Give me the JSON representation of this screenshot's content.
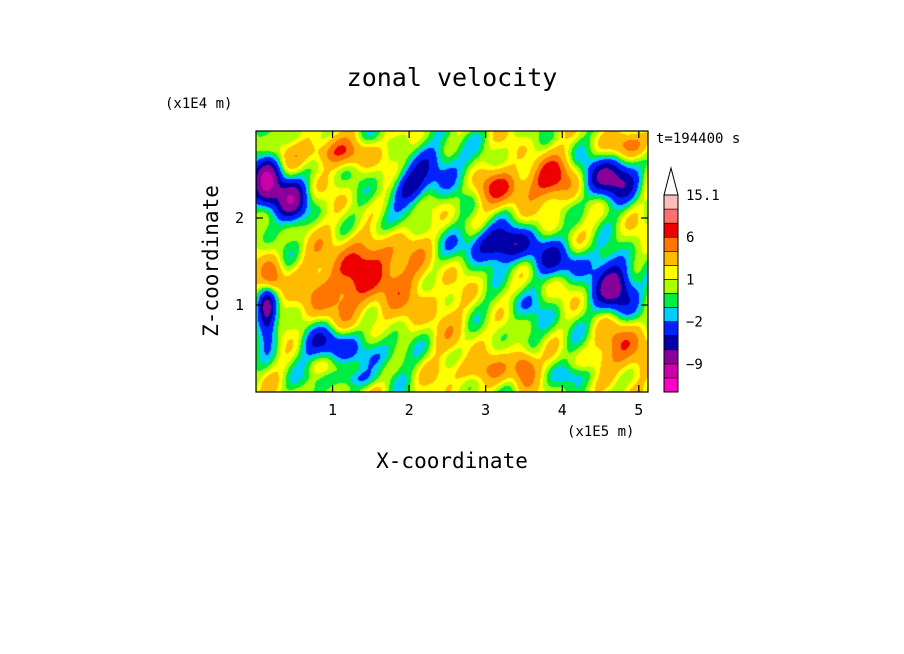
{
  "chart_data": {
    "type": "heatmap",
    "title": "zonal velocity",
    "xlabel": "X-coordinate",
    "ylabel": "Z-coordinate",
    "x_unit": "(x1E5 m)",
    "y_unit": "(x1E4 m)",
    "time_label": "t=194400 s",
    "xlim": [
      0.0,
      5.12
    ],
    "ylim": [
      0.0,
      3.0
    ],
    "x_ticks": [
      {
        "value": 1,
        "label": "1"
      },
      {
        "value": 2,
        "label": "2"
      },
      {
        "value": 3,
        "label": "3"
      },
      {
        "value": 4,
        "label": "4"
      },
      {
        "value": 5,
        "label": "5"
      }
    ],
    "y_ticks": [
      {
        "value": 1,
        "label": "1"
      },
      {
        "value": 2,
        "label": "2"
      }
    ],
    "colorbar": {
      "levels": [
        -15.1,
        -12,
        -9,
        -6,
        -4,
        -2,
        -1,
        0,
        1,
        2,
        4,
        6,
        9,
        12,
        15.1
      ],
      "colors": [
        "#ff00cc",
        "#cc00aa",
        "#880099",
        "#0000aa",
        "#0022ff",
        "#00ccff",
        "#00ee44",
        "#aaff00",
        "#ffff00",
        "#ffbb00",
        "#ff7700",
        "#ee0000",
        "#ff6f6f",
        "#ffbbbb"
      ],
      "extend_max": true,
      "extend_color": "#ffffff",
      "labels": [
        {
          "value": 15.1,
          "label": "15.1"
        },
        {
          "value": 6,
          "label": "6"
        },
        {
          "value": 1,
          "label": "1"
        },
        {
          "value": -2,
          "label": "−2"
        },
        {
          "value": -9,
          "label": "−9"
        }
      ]
    },
    "field_features": [
      {
        "x": 0.15,
        "z": 2.4,
        "sx": 0.18,
        "sz": 0.3,
        "amp": -10
      },
      {
        "x": 0.45,
        "z": 2.2,
        "sx": 0.2,
        "sz": 0.25,
        "amp": -8
      },
      {
        "x": 0.15,
        "z": 0.9,
        "sx": 0.12,
        "sz": 0.35,
        "amp": -7
      },
      {
        "x": 0.2,
        "z": 1.3,
        "sx": 0.15,
        "sz": 0.2,
        "amp": 6
      },
      {
        "x": 1.0,
        "z": 2.75,
        "sx": 0.6,
        "sz": 0.15,
        "amp": 4
      },
      {
        "x": 1.5,
        "z": 1.4,
        "sx": 0.6,
        "sz": 0.45,
        "amp": 6
      },
      {
        "x": 0.9,
        "z": 1.1,
        "sx": 0.3,
        "sz": 0.3,
        "amp": 3
      },
      {
        "x": 0.95,
        "z": 0.55,
        "sx": 0.35,
        "sz": 0.2,
        "amp": -5
      },
      {
        "x": 1.7,
        "z": 0.45,
        "sx": 0.3,
        "sz": 0.2,
        "amp": -3
      },
      {
        "x": 2.0,
        "z": 2.35,
        "sx": 0.25,
        "sz": 0.2,
        "amp": -5
      },
      {
        "x": 1.6,
        "z": 1.9,
        "sx": 0.3,
        "sz": 0.2,
        "amp": -3
      },
      {
        "x": 2.4,
        "z": 2.6,
        "sx": 0.35,
        "sz": 0.3,
        "amp": -4
      },
      {
        "x": 3.2,
        "z": 2.35,
        "sx": 0.35,
        "sz": 0.2,
        "amp": 5
      },
      {
        "x": 3.9,
        "z": 2.45,
        "sx": 0.35,
        "sz": 0.25,
        "amp": 6
      },
      {
        "x": 3.2,
        "z": 1.7,
        "sx": 0.5,
        "sz": 0.2,
        "amp": -7
      },
      {
        "x": 4.0,
        "z": 1.5,
        "sx": 0.45,
        "sz": 0.2,
        "amp": -4
      },
      {
        "x": 4.6,
        "z": 2.45,
        "sx": 0.35,
        "sz": 0.25,
        "amp": -8
      },
      {
        "x": 4.9,
        "z": 2.85,
        "sx": 0.25,
        "sz": 0.15,
        "amp": 5
      },
      {
        "x": 4.7,
        "z": 1.2,
        "sx": 0.25,
        "sz": 0.3,
        "amp": -9
      },
      {
        "x": 4.8,
        "z": 0.5,
        "sx": 0.3,
        "sz": 0.3,
        "amp": 5
      },
      {
        "x": 2.6,
        "z": 0.65,
        "sx": 0.5,
        "sz": 0.25,
        "amp": 1
      },
      {
        "x": 3.7,
        "z": 0.75,
        "sx": 0.35,
        "sz": 0.25,
        "amp": -1.5
      },
      {
        "x": 2.9,
        "z": 0.25,
        "sx": 0.45,
        "sz": 0.15,
        "amp": 3
      },
      {
        "x": 3.5,
        "z": 0.3,
        "sx": 0.15,
        "sz": 0.2,
        "amp": 6
      },
      {
        "x": 2.3,
        "z": 1.0,
        "sx": 0.35,
        "sz": 0.2,
        "amp": 1.5
      },
      {
        "x": 3.4,
        "z": 1.0,
        "sx": 0.3,
        "sz": 0.15,
        "amp": -1.5
      },
      {
        "x": 1.2,
        "z": 0.15,
        "sx": 0.4,
        "sz": 0.1,
        "amp": -2.5
      },
      {
        "x": 4.2,
        "z": 0.2,
        "sx": 0.3,
        "sz": 0.12,
        "amp": -2
      }
    ]
  }
}
